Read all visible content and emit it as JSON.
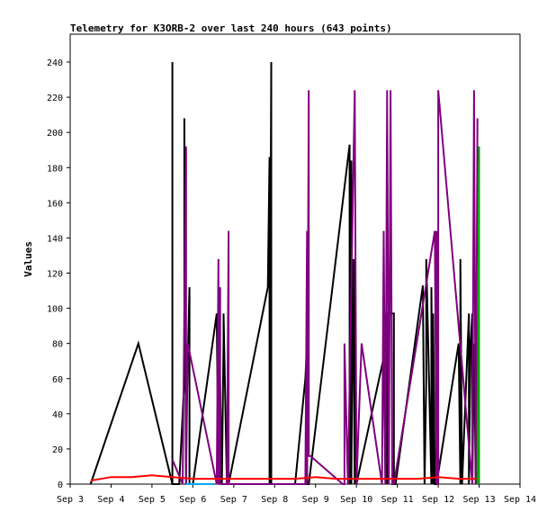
{
  "chart_data": {
    "type": "line",
    "title": "Telemetry for K3ORB-2 over last 240 hours (643 points)",
    "xlabel": "",
    "ylabel": "Values",
    "x_ticks": [
      "Sep 3",
      "Sep 4",
      "Sep 5",
      "Sep 6",
      "Sep 7",
      "Sep 8",
      "Sep 9",
      "Sep 10",
      "Sep 11",
      "Sep 12",
      "Sep 13",
      "Sep 14"
    ],
    "xlim": [
      "Sep 3 00:00",
      "Sep 14 00:00"
    ],
    "ylim": [
      0,
      255
    ],
    "y_ticks": [
      0,
      20,
      40,
      60,
      80,
      100,
      120,
      140,
      160,
      180,
      200,
      220,
      240
    ],
    "grid": false,
    "legend": "none",
    "series": [
      {
        "color": "#000000",
        "x": [
          "Sep 3 12:00",
          "Sep 4 16:00",
          "Sep 5 12:00",
          "Sep 5 12:00",
          "Sep 5 12:00",
          "Sep 5 16:00",
          "Sep 5 19:00",
          "Sep 5 19:00",
          "Sep 5 20:00",
          "Sep 5 20:00",
          "Sep 5 22:00",
          "Sep 5 22:00",
          "Sep 6 00:00",
          "Sep 6 14:00",
          "Sep 6 15:00",
          "Sep 6 15:00",
          "Sep 6 17:00",
          "Sep 6 18:00",
          "Sep 6 18:00",
          "Sep 6 20:00",
          "Sep 6 20:00",
          "Sep 6 21:00",
          "Sep 7 20:00",
          "Sep 7 21:00",
          "Sep 7 21:00",
          "Sep 7 22:00",
          "Sep 7 22:00",
          "Sep 8 00:00",
          "Sep 8 12:00",
          "Sep 8 18:00",
          "Sep 8 19:00",
          "Sep 8 19:00",
          "Sep 8 20:00",
          "Sep 9 20:00",
          "Sep 9 20:00",
          "Sep 9 21:00",
          "Sep 9 21:00",
          "Sep 9 22:00",
          "Sep 9 23:00",
          "Sep 9 23:00",
          "Sep 10 00:00",
          "Sep 10 00:00",
          "Sep 10 16:00",
          "Sep 10 17:00",
          "Sep 10 17:00",
          "Sep 10 18:00",
          "Sep 10 18:00",
          "Sep 10 19:00",
          "Sep 10 22:00",
          "Sep 10 22:00",
          "Sep 10 23:00",
          "Sep 11 15:00",
          "Sep 11 16:00",
          "Sep 11 17:00",
          "Sep 11 17:00",
          "Sep 11 20:00",
          "Sep 11 20:00",
          "Sep 11 21:00",
          "Sep 11 21:00",
          "Sep 11 22:00",
          "Sep 11 23:00",
          "Sep 12 12:00",
          "Sep 12 13:00",
          "Sep 12 13:00",
          "Sep 12 14:00",
          "Sep 12 18:00",
          "Sep 12 18:00",
          "Sep 12 19:00",
          "Sep 12 20:00",
          "Sep 12 20:00",
          "Sep 12 21:00",
          "Sep 12 22:00",
          "Sep 12 22:00",
          "Sep 12 23:00"
        ],
        "y": [
          0,
          80,
          0,
          240,
          0,
          0,
          60,
          208,
          0,
          28,
          112,
          0,
          0,
          97,
          0,
          112,
          0,
          82,
          97,
          0,
          0,
          0,
          112,
          186,
          0,
          240,
          0,
          0,
          0,
          60,
          80,
          0,
          0,
          193,
          0,
          184,
          0,
          128,
          0,
          128,
          0,
          0,
          72,
          0,
          96,
          97,
          0,
          97,
          97,
          0,
          0,
          113,
          0,
          60,
          128,
          0,
          112,
          0,
          97,
          0,
          0,
          80,
          0,
          128,
          0,
          97,
          0,
          80,
          97,
          0,
          80,
          0,
          112,
          0
        ]
      },
      {
        "color": "#800080",
        "x": [
          "Sep 5 12:00",
          "Sep 5 18:00",
          "Sep 5 20:00",
          "Sep 5 20:00",
          "Sep 5 21:00",
          "Sep 5 21:00",
          "Sep 6 14:00",
          "Sep 6 15:00",
          "Sep 6 15:00",
          "Sep 6 16:00",
          "Sep 6 16:00",
          "Sep 6 20:00",
          "Sep 6 21:00",
          "Sep 6 21:00",
          "Sep 8 18:00",
          "Sep 8 19:00",
          "Sep 8 19:00",
          "Sep 8 20:00",
          "Sep 8 20:00",
          "Sep 8 21:00",
          "Sep 9 16:00",
          "Sep 9 17:00",
          "Sep 9 17:00",
          "Sep 9 19:00",
          "Sep 9 23:00",
          "Sep 10 00:00",
          "Sep 10 00:00",
          "Sep 10 03:00",
          "Sep 10 15:00",
          "Sep 10 16:00",
          "Sep 10 17:00",
          "Sep 10 18:00",
          "Sep 10 19:00",
          "Sep 10 20:00",
          "Sep 10 21:00",
          "Sep 10 22:00",
          "Sep 11 22:00",
          "Sep 11 23:00",
          "Sep 11 23:00",
          "Sep 12 00:00",
          "Sep 12 00:00",
          "Sep 12 20:00",
          "Sep 12 21:00",
          "Sep 12 22:00",
          "Sep 12 23:00"
        ],
        "y": [
          14,
          0,
          192,
          0,
          80,
          80,
          0,
          128,
          0,
          112,
          0,
          0,
          144,
          0,
          0,
          144,
          0,
          224,
          16,
          16,
          0,
          0,
          80,
          0,
          224,
          0,
          0,
          80,
          0,
          144,
          0,
          224,
          0,
          224,
          0,
          0,
          144,
          0,
          144,
          0,
          224,
          0,
          224,
          0,
          208
        ]
      },
      {
        "color": "#ff0000",
        "x": [
          "Sep 3 12:00",
          "Sep 4 00:00",
          "Sep 4 12:00",
          "Sep 5 00:00",
          "Sep 5 12:00",
          "Sep 6 00:00",
          "Sep 7 00:00",
          "Sep 8 00:00",
          "Sep 8 12:00",
          "Sep 9 00:00",
          "Sep 9 12:00",
          "Sep 10 00:00",
          "Sep 10 12:00",
          "Sep 11 00:00",
          "Sep 11 12:00",
          "Sep 12 00:00",
          "Sep 12 12:00",
          "Sep 13 00:00"
        ],
        "y": [
          2,
          4,
          4,
          5,
          4,
          3,
          3,
          3,
          3,
          4,
          3,
          3,
          3,
          3,
          3,
          4,
          3,
          3
        ]
      },
      {
        "color": "#00aa00",
        "x": [
          "Sep 12 23:00",
          "Sep 13 00:00",
          "Sep 13 00:00"
        ],
        "y": [
          0,
          192,
          0
        ]
      },
      {
        "color": "#00aaff",
        "x": [
          "Sep 5 20:00",
          "Sep 6 12:00"
        ],
        "y": [
          0,
          0
        ]
      }
    ]
  }
}
